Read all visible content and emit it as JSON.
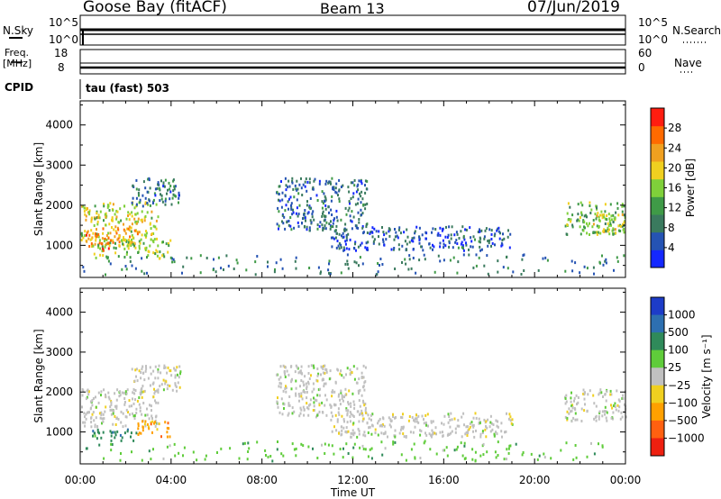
{
  "header": {
    "station": "Goose Bay (fitACF)",
    "beam": "Beam 13",
    "date": "07/Jun/2019"
  },
  "strip_panels": {
    "nsky_label": "N.Sky",
    "nsky_ticks": [
      "10^5",
      "10^0"
    ],
    "nsearch_label": "N.Search",
    "nsearch_ticks": [
      "10^5",
      "10^0"
    ],
    "freq_label": "Freq.",
    "freq_unit": "[MHz]",
    "freq_ticks": [
      "18",
      "8"
    ],
    "nave_label": "Nave",
    "nave_ticks": [
      "60",
      "0"
    ],
    "cpid_label": "CPID",
    "cpid_text": "tau (fast) 503"
  },
  "colors": {
    "power": [
      "#1428ff",
      "#2553b3",
      "#3a7a5e",
      "#3f9a47",
      "#7fd03a",
      "#f0d020",
      "#f0a020",
      "#ff6a00",
      "#ff1d10"
    ],
    "velocity": [
      "#1d3cc8",
      "#2d6fb0",
      "#2f8a5a",
      "#5fcc3a",
      "#c0c0c0",
      "#f0d020",
      "#ffa000",
      "#ff6010",
      "#ee2010"
    ]
  },
  "chart_data": [
    {
      "type": "heatmap",
      "name": "power",
      "ylabel": "Slant Range [km]",
      "yticks": [
        1000,
        2000,
        3000,
        4000
      ],
      "ylim": [
        200,
        4600
      ],
      "colorbar_label": "Power [dB]",
      "colorbar_ticks": [
        "4",
        "8",
        "12",
        "16",
        "20",
        "24",
        "28"
      ],
      "colorbar_range": [
        0,
        32
      ],
      "echo_regions": [
        {
          "t0": 0.0,
          "t1": 3.4,
          "r0": 1150,
          "r1": 2100,
          "level": 18
        },
        {
          "t0": 0.2,
          "t1": 2.5,
          "r0": 1000,
          "r1": 1500,
          "level": 24
        },
        {
          "t0": 0.5,
          "t1": 4.0,
          "r0": 700,
          "r1": 1200,
          "level": 16
        },
        {
          "t0": 0.8,
          "t1": 1.6,
          "r0": 900,
          "r1": 1100,
          "level": 29
        },
        {
          "t0": 2.2,
          "t1": 4.4,
          "r0": 2000,
          "r1": 2700,
          "level": 8
        },
        {
          "t0": 8.6,
          "t1": 12.6,
          "r0": 1400,
          "r1": 2700,
          "level": 7
        },
        {
          "t0": 11.0,
          "t1": 19.0,
          "r0": 900,
          "r1": 1500,
          "level": 6
        },
        {
          "t0": 21.3,
          "t1": 24.0,
          "r0": 1300,
          "r1": 2100,
          "level": 14
        },
        {
          "t0": 22.5,
          "t1": 24.0,
          "r0": 1300,
          "r1": 1800,
          "level": 18
        },
        {
          "t0": 0.0,
          "t1": 24.0,
          "r0": 300,
          "r1": 800,
          "level": 9
        }
      ]
    },
    {
      "type": "heatmap",
      "name": "velocity",
      "xlabel": "Time UT",
      "xticks": [
        "00:00",
        "04:00",
        "08:00",
        "12:00",
        "16:00",
        "20:00",
        "00:00"
      ],
      "xlim_hours": [
        0,
        24
      ],
      "ylabel": "Slant Range [km]",
      "yticks": [
        1000,
        2000,
        3000,
        4000
      ],
      "ylim": [
        200,
        4600
      ],
      "colorbar_label": "Velocity [m s⁻¹]",
      "colorbar_ticks": [
        "1000",
        "500",
        "100",
        "25",
        "−25",
        "−100",
        "−500",
        "−1000"
      ],
      "echo_regions": [
        {
          "t0": 0.0,
          "t1": 3.4,
          "r0": 1150,
          "r1": 2100,
          "level": 4
        },
        {
          "t0": 0.5,
          "t1": 2.5,
          "r0": 800,
          "r1": 1100,
          "level": 2
        },
        {
          "t0": 2.5,
          "t1": 4.0,
          "r0": 900,
          "r1": 1300,
          "level": 6
        },
        {
          "t0": 2.2,
          "t1": 4.4,
          "r0": 2000,
          "r1": 2700,
          "level": 4
        },
        {
          "t0": 8.6,
          "t1": 12.6,
          "r0": 1400,
          "r1": 2700,
          "level": 4
        },
        {
          "t0": 11.0,
          "t1": 19.0,
          "r0": 900,
          "r1": 1500,
          "level": 4
        },
        {
          "t0": 21.3,
          "t1": 24.0,
          "r0": 1300,
          "r1": 2100,
          "level": 4
        },
        {
          "t0": 0.0,
          "t1": 24.0,
          "r0": 300,
          "r1": 800,
          "level": 3
        }
      ]
    }
  ]
}
